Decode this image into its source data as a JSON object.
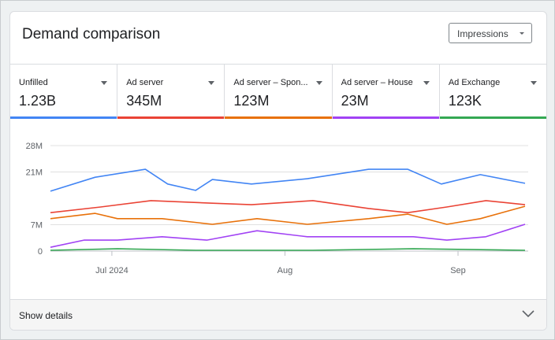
{
  "card": {
    "title": "Demand comparison",
    "metric_select": {
      "value": "Impressions"
    }
  },
  "tabs": [
    {
      "label": "Unfilled",
      "value": "1.23B",
      "color": "#4285f4"
    },
    {
      "label": "Ad server",
      "value": "345M",
      "color": "#ea4335"
    },
    {
      "label": "Ad server – Spon...",
      "value": "123M",
      "color": "#e8710a"
    },
    {
      "label": "Ad server – House",
      "value": "23M",
      "color": "#a142f4"
    },
    {
      "label": "Ad Exchange",
      "value": "123K",
      "color": "#34a853"
    }
  ],
  "footer": {
    "label": "Show details",
    "icon": "chevron-down-icon"
  },
  "chart_data": {
    "type": "line",
    "xrange": [
      "2024-06-20",
      "2024-09-13"
    ],
    "ylim": [
      0,
      28
    ],
    "y_ticks": [
      {
        "value": 0,
        "label": "0"
      },
      {
        "value": 7,
        "label": "7M"
      },
      {
        "value": 21,
        "label": "21M"
      },
      {
        "value": 28,
        "label": "28M"
      }
    ],
    "x_ticks": [
      {
        "date": "2024-07-01",
        "label": "Jul 2024"
      },
      {
        "date": "2024-08-01",
        "label": "Aug"
      },
      {
        "date": "2024-09-01",
        "label": "Sep"
      }
    ],
    "grid": true,
    "series": [
      {
        "color": "#4285f4",
        "points": [
          [
            "2024-06-20",
            15.9
          ],
          [
            "2024-06-28",
            19.6
          ],
          [
            "2024-07-07",
            21.7
          ],
          [
            "2024-07-11",
            17.8
          ],
          [
            "2024-07-16",
            16.1
          ],
          [
            "2024-07-19",
            19.0
          ],
          [
            "2024-07-26",
            17.8
          ],
          [
            "2024-08-05",
            19.2
          ],
          [
            "2024-08-16",
            21.7
          ],
          [
            "2024-08-23",
            21.7
          ],
          [
            "2024-08-29",
            17.8
          ],
          [
            "2024-09-05",
            20.3
          ],
          [
            "2024-09-13",
            18.0
          ]
        ]
      },
      {
        "color": "#ea4335",
        "points": [
          [
            "2024-06-20",
            10.2
          ],
          [
            "2024-06-29",
            11.7
          ],
          [
            "2024-07-08",
            13.4
          ],
          [
            "2024-07-19",
            12.7
          ],
          [
            "2024-07-26",
            12.3
          ],
          [
            "2024-08-06",
            13.4
          ],
          [
            "2024-08-16",
            11.3
          ],
          [
            "2024-08-23",
            10.2
          ],
          [
            "2024-08-30",
            11.7
          ],
          [
            "2024-09-06",
            13.4
          ],
          [
            "2024-09-13",
            12.3
          ]
        ]
      },
      {
        "color": "#e8710a",
        "points": [
          [
            "2024-06-20",
            8.6
          ],
          [
            "2024-06-28",
            10.0
          ],
          [
            "2024-07-02",
            8.6
          ],
          [
            "2024-07-10",
            8.6
          ],
          [
            "2024-07-19",
            7.1
          ],
          [
            "2024-07-27",
            8.6
          ],
          [
            "2024-08-05",
            7.1
          ],
          [
            "2024-08-16",
            8.6
          ],
          [
            "2024-08-23",
            9.8
          ],
          [
            "2024-08-30",
            7.1
          ],
          [
            "2024-09-05",
            8.6
          ],
          [
            "2024-09-13",
            11.9
          ]
        ]
      },
      {
        "color": "#a142f4",
        "points": [
          [
            "2024-06-20",
            1.0
          ],
          [
            "2024-06-26",
            2.9
          ],
          [
            "2024-07-02",
            2.9
          ],
          [
            "2024-07-10",
            3.8
          ],
          [
            "2024-07-18",
            2.9
          ],
          [
            "2024-07-27",
            5.4
          ],
          [
            "2024-08-05",
            3.8
          ],
          [
            "2024-08-16",
            3.8
          ],
          [
            "2024-08-24",
            3.8
          ],
          [
            "2024-08-30",
            2.9
          ],
          [
            "2024-09-06",
            3.8
          ],
          [
            "2024-09-13",
            7.1
          ]
        ]
      },
      {
        "color": "#34a853",
        "points": [
          [
            "2024-06-20",
            0.2
          ],
          [
            "2024-07-02",
            0.6
          ],
          [
            "2024-07-16",
            0.2
          ],
          [
            "2024-08-06",
            0.2
          ],
          [
            "2024-08-24",
            0.6
          ],
          [
            "2024-09-13",
            0.2
          ]
        ]
      }
    ]
  }
}
